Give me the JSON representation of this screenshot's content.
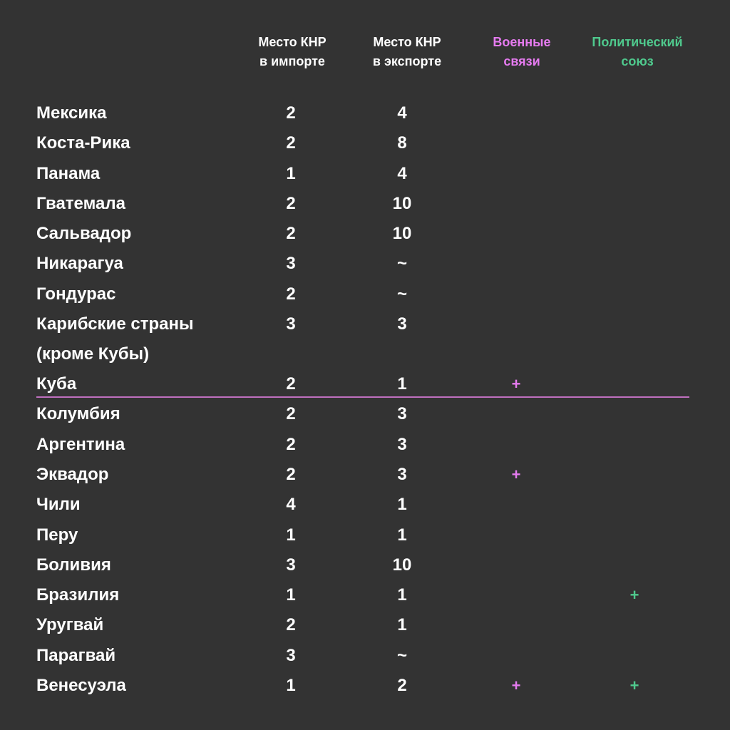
{
  "headers": {
    "import_line1": "Место КНР",
    "import_line2": "в импорте",
    "export_line1": "Место КНР",
    "export_line2": "в экспорте",
    "military_line1": "Военные",
    "military_line2": "связи",
    "political_line1": "Политический",
    "political_line2": "союз"
  },
  "colors": {
    "background": "#333333",
    "text": "#ffffff",
    "military": "#e67bf0",
    "political": "#4fc98d",
    "divider": "#c06fbf"
  },
  "rows": [
    {
      "country": "Мексика",
      "import": "2",
      "export": "4",
      "military": "",
      "political": ""
    },
    {
      "country": "Коста-Рика",
      "import": "2",
      "export": "8",
      "military": "",
      "political": ""
    },
    {
      "country": "Панама",
      "import": "1",
      "export": "4",
      "military": "",
      "political": ""
    },
    {
      "country": "Гватемала",
      "import": "2",
      "export": "10",
      "military": "",
      "political": ""
    },
    {
      "country": "Сальвадор",
      "import": "2",
      "export": "10",
      "military": "",
      "political": ""
    },
    {
      "country": "Никарагуа",
      "import": "3",
      "export": "~",
      "military": "",
      "political": ""
    },
    {
      "country": "Гондурас",
      "import": "2",
      "export": "~",
      "military": "",
      "political": ""
    },
    {
      "country": "Карибские страны",
      "country2": "(кроме Кубы)",
      "import": "3",
      "export": "3",
      "military": "",
      "political": ""
    },
    {
      "country": "Куба",
      "import": "2",
      "export": "1",
      "military": "+",
      "political": ""
    },
    {
      "country": "Колумбия",
      "import": "2",
      "export": "3",
      "military": "",
      "political": ""
    },
    {
      "country": "Аргентина",
      "import": "2",
      "export": "3",
      "military": "",
      "political": ""
    },
    {
      "country": "Эквадор",
      "import": "2",
      "export": "3",
      "military": "+",
      "political": ""
    },
    {
      "country": "Чили",
      "import": "4",
      "export": "1",
      "military": "",
      "political": ""
    },
    {
      "country": "Перу",
      "import": "1",
      "export": "1",
      "military": "",
      "political": ""
    },
    {
      "country": "Боливия",
      "import": "3",
      "export": "10",
      "military": "",
      "political": ""
    },
    {
      "country": "Бразилия",
      "import": "1",
      "export": "1",
      "military": "",
      "political": "+"
    },
    {
      "country": "Уругвай",
      "import": "2",
      "export": "1",
      "military": "",
      "political": ""
    },
    {
      "country": "Парагвай",
      "import": "3",
      "export": "~",
      "military": "",
      "political": ""
    },
    {
      "country": "Венесуэла",
      "import": "1",
      "export": "2",
      "military": "+",
      "political": "+"
    }
  ]
}
